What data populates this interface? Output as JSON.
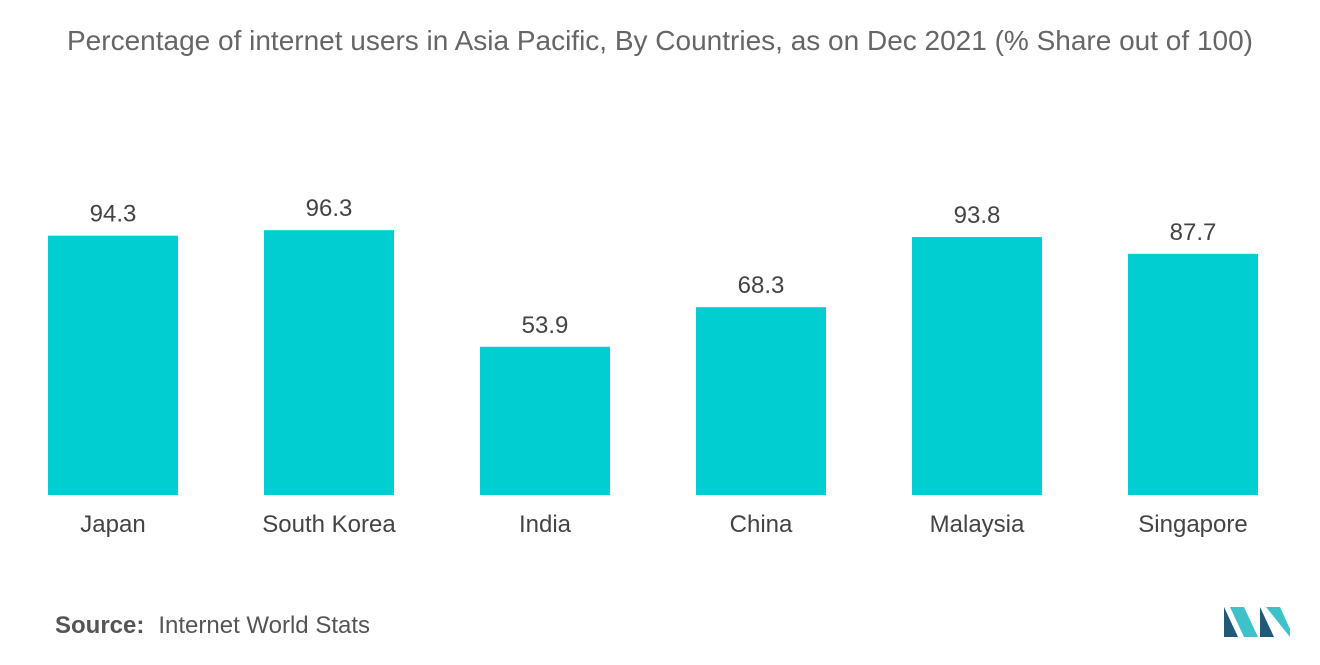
{
  "chart_data": {
    "type": "bar",
    "title": "Percentage of internet users in Asia Pacific, By Countries, as on Dec 2021 (% Share out of 100)",
    "categories": [
      "Japan",
      "South Korea",
      "India",
      "China",
      "Malaysia",
      "Singapore"
    ],
    "values": [
      94.3,
      96.3,
      53.9,
      68.3,
      93.8,
      87.7
    ],
    "value_labels": [
      "94.3",
      "96.3",
      "53.9",
      "68.3",
      "93.8",
      "87.7"
    ],
    "ylim": [
      0,
      100
    ],
    "grid": false,
    "legend": "none",
    "bar_color": "#00CED1"
  },
  "source": {
    "label": "Source:",
    "text": "Internet World Stats"
  },
  "logo": {
    "icon": "mordor-intelligence-logo-icon",
    "color_dark": "#1f5a7a",
    "color_light": "#3fc1c9"
  }
}
